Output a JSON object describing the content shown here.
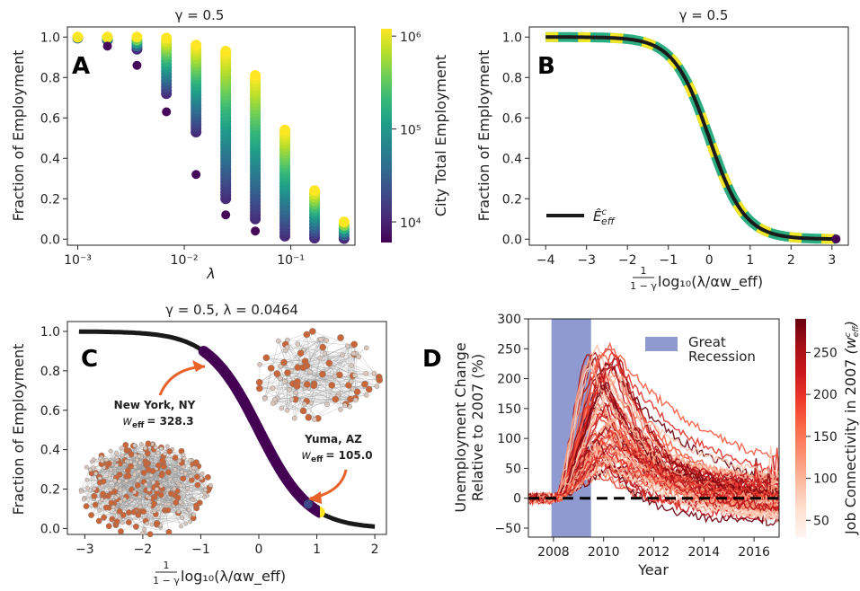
{
  "colors": {
    "viridis": [
      "#440154",
      "#482878",
      "#3e4989",
      "#31688e",
      "#26828e",
      "#1f9e89",
      "#35b779",
      "#6ece58",
      "#b5de2b",
      "#fde725"
    ],
    "reds": [
      "#fff5f0",
      "#fee0d2",
      "#fcbba1",
      "#fc9272",
      "#fb6a4a",
      "#ef3b2c",
      "#cb181d",
      "#a50f15",
      "#67000d"
    ],
    "recession": "#8f9bd0",
    "annotation": "#e8622a",
    "curve": "#1a1a1a"
  },
  "chart_data": [
    {
      "panel": "A",
      "type": "scatter",
      "title": "γ = 0.5",
      "xlabel": "λ",
      "ylabel": "Fraction of Employment",
      "xscale": "log",
      "x_ticks": [
        "10⁻³",
        "10⁻²",
        "10⁻¹"
      ],
      "y_ticks": [
        "0.0",
        "0.2",
        "0.4",
        "0.6",
        "0.8",
        "1.0"
      ],
      "xlim": [
        0.0008,
        0.4
      ],
      "ylim": [
        -0.03,
        1.05
      ],
      "colorbar": {
        "label": "City Total Employment",
        "ticks": [
          "10⁴",
          "10⁵",
          "10⁶"
        ],
        "range": [
          6000,
          1200000
        ]
      },
      "columns": [
        {
          "x": 0.001,
          "min": 0.995,
          "max": 1.0,
          "low_outliers": []
        },
        {
          "x": 0.0019,
          "min": 0.985,
          "max": 1.0,
          "low_outliers": [
            0.955
          ]
        },
        {
          "x": 0.0036,
          "min": 0.94,
          "max": 1.0,
          "low_outliers": [
            0.86
          ]
        },
        {
          "x": 0.0068,
          "min": 0.72,
          "max": 0.995,
          "low_outliers": [
            0.63
          ]
        },
        {
          "x": 0.0129,
          "min": 0.53,
          "max": 0.96,
          "low_outliers": [
            0.32
          ]
        },
        {
          "x": 0.0245,
          "min": 0.2,
          "max": 0.93,
          "low_outliers": [
            0.12
          ]
        },
        {
          "x": 0.0464,
          "min": 0.1,
          "max": 0.81,
          "low_outliers": [
            0.04
          ]
        },
        {
          "x": 0.088,
          "min": 0.015,
          "max": 0.54,
          "low_outliers": []
        },
        {
          "x": 0.167,
          "min": 0.005,
          "max": 0.24,
          "low_outliers": []
        },
        {
          "x": 0.316,
          "min": 0.003,
          "max": 0.085,
          "low_outliers": []
        }
      ]
    },
    {
      "panel": "B",
      "type": "line",
      "title": "γ = 0.5",
      "xlabel": "log₁₀(λ/αw_eff)",
      "xlabel_fraction": {
        "num": "1",
        "den": "1 − γ"
      },
      "ylabel": "Fraction of Employment",
      "x_ticks": [
        -4,
        -3,
        -2,
        -1,
        0,
        1,
        2,
        3
      ],
      "y_ticks": [
        "0.0",
        "0.2",
        "0.4",
        "0.6",
        "0.8",
        "1.0"
      ],
      "xlim": [
        -4.4,
        3.4
      ],
      "ylim": [
        -0.03,
        1.05
      ],
      "series": [
        {
          "name": "Ê^c_eff",
          "x_range": [
            -4,
            3.1
          ],
          "shape": "1/(1+10^x)"
        }
      ],
      "legend": "lower-left"
    },
    {
      "panel": "C",
      "type": "line",
      "title": "γ = 0.5, λ = 0.0464",
      "xlabel": "log₁₀(λ/αw_eff)",
      "xlabel_fraction": {
        "num": "1",
        "den": "1 − γ"
      },
      "ylabel": "Fraction of Employment",
      "x_ticks": [
        -3,
        -2,
        -1,
        0,
        1,
        2
      ],
      "y_ticks": [
        "0.0",
        "0.2",
        "0.4",
        "0.6",
        "0.8",
        "1.0"
      ],
      "xlim": [
        -3.3,
        2.2
      ],
      "ylim": [
        -0.03,
        1.05
      ],
      "series": [
        {
          "x_range": [
            -3.1,
            2.0
          ],
          "shape": "1/(1+10^x)"
        }
      ],
      "colored_segment": [
        -0.95,
        1.05
      ],
      "annotations": [
        {
          "city": "New York, NY",
          "label": "w",
          "sub": "eff",
          "value": "= 328.3"
        },
        {
          "city": "Yuma, AZ",
          "label": "w",
          "sub": "eff",
          "value": "= 105.0"
        }
      ]
    },
    {
      "panel": "D",
      "type": "line",
      "xlabel": "Year",
      "ylabel": "Unemployment Change Relative to 2007 (%)",
      "ylabel_lines": [
        "Unemployment Change",
        "Relative to 2007 (%)"
      ],
      "x_ticks": [
        2008,
        2010,
        2012,
        2014,
        2016
      ],
      "y_ticks": [
        -50,
        0,
        50,
        100,
        150,
        200,
        250,
        300
      ],
      "xlim": [
        2007,
        2017
      ],
      "ylim": [
        -65,
        300
      ],
      "recession": {
        "start": 2007.92,
        "end": 2009.5,
        "label_lines": [
          "Great",
          "Recession"
        ]
      },
      "baseline": 0,
      "colorbar": {
        "label": "Job Connectivity in 2007",
        "label_math": "(w^c_eff)",
        "ticks": [
          50,
          100,
          150,
          200,
          250
        ],
        "range": [
          30,
          290
        ]
      },
      "series_count": 70,
      "representative_series": [
        {
          "years": [
            2007,
            2008,
            2009,
            2010,
            2011,
            2012,
            2013,
            2014,
            2015,
            2016,
            2017
          ],
          "values": [
            0,
            5,
            90,
            150,
            140,
            120,
            100,
            80,
            60,
            40,
            20
          ]
        },
        {
          "years": [
            2007,
            2008,
            2009,
            2010,
            2011,
            2012,
            2013,
            2014,
            2015,
            2016,
            2017
          ],
          "values": [
            0,
            15,
            140,
            250,
            220,
            190,
            150,
            110,
            80,
            60,
            50
          ]
        },
        {
          "years": [
            2007,
            2008,
            2009,
            2010,
            2011,
            2012,
            2013,
            2014,
            2015,
            2016,
            2017
          ],
          "values": [
            0,
            2,
            40,
            80,
            60,
            50,
            40,
            25,
            10,
            0,
            -10
          ]
        }
      ]
    }
  ],
  "panels": {
    "A": {
      "letter": "A"
    },
    "B": {
      "letter": "B"
    },
    "C": {
      "letter": "C"
    },
    "D": {
      "letter": "D"
    }
  }
}
